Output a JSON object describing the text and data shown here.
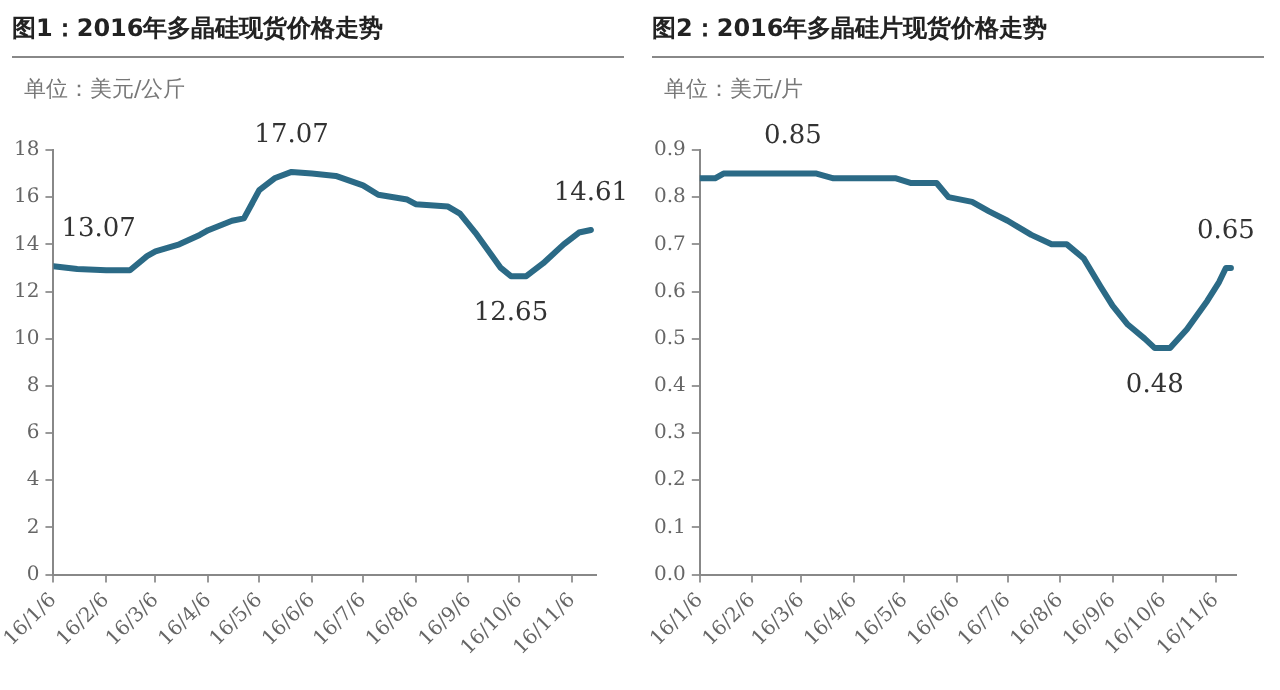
{
  "chart_data": [
    {
      "type": "line",
      "title": "图1：2016年多晶硅现货价格走势",
      "ylabel": "单位：美元/公斤",
      "x": [
        "2016-01-06",
        "2016-01-20",
        "2016-02-06",
        "2016-02-20",
        "2016-03-01",
        "2016-03-06",
        "2016-03-20",
        "2016-04-01",
        "2016-04-06",
        "2016-04-20",
        "2016-04-27",
        "2016-05-06",
        "2016-05-15",
        "2016-05-25",
        "2016-06-06",
        "2016-06-20",
        "2016-07-06",
        "2016-07-15",
        "2016-08-01",
        "2016-08-06",
        "2016-08-25",
        "2016-09-01",
        "2016-09-10",
        "2016-09-25",
        "2016-10-01",
        "2016-10-10",
        "2016-10-20",
        "2016-11-01",
        "2016-11-10",
        "2016-11-17"
      ],
      "series": [
        {
          "color": "#2b6a86",
          "values": [
            13.07,
            12.95,
            12.9,
            12.9,
            13.5,
            13.7,
            14.0,
            14.4,
            14.6,
            15.0,
            15.1,
            16.3,
            16.8,
            17.07,
            17.0,
            16.9,
            16.5,
            16.1,
            15.9,
            15.7,
            15.6,
            15.3,
            14.5,
            13.0,
            12.65,
            12.65,
            13.2,
            14.0,
            14.5,
            14.61
          ]
        }
      ],
      "xlim": [
        "2016-01-06",
        "2016-11-20"
      ],
      "xticks": [
        {
          "value": "2016-01-06",
          "label": "16/1/6"
        },
        {
          "value": "2016-02-06",
          "label": "16/2/6"
        },
        {
          "value": "2016-03-06",
          "label": "16/3/6"
        },
        {
          "value": "2016-04-06",
          "label": "16/4/6"
        },
        {
          "value": "2016-05-06",
          "label": "16/5/6"
        },
        {
          "value": "2016-06-06",
          "label": "16/6/6"
        },
        {
          "value": "2016-07-06",
          "label": "16/7/6"
        },
        {
          "value": "2016-08-06",
          "label": "16/8/6"
        },
        {
          "value": "2016-09-06",
          "label": "16/9/6"
        },
        {
          "value": "2016-10-06",
          "label": "16/10/6"
        },
        {
          "value": "2016-11-06",
          "label": "16/11/6"
        }
      ],
      "ylim": [
        0,
        18
      ],
      "yticks": [
        0,
        2,
        4,
        6,
        8,
        10,
        12,
        14,
        16,
        18
      ],
      "grid": false,
      "legend": false,
      "marker": "none",
      "line_style": "solid",
      "annotations": [
        {
          "text": "13.07",
          "x": "2016-01-06",
          "y": 13.07
        },
        {
          "text": "17.07",
          "x": "2016-05-25",
          "y": 17.07
        },
        {
          "text": "12.65",
          "x": "2016-10-01",
          "y": 12.65
        },
        {
          "text": "14.61",
          "x": "2016-11-17",
          "y": 14.61
        }
      ]
    },
    {
      "type": "line",
      "title": "图2：2016年多晶硅片现货价格走势",
      "ylabel": "单位：美元/片",
      "x": [
        "2016-01-06",
        "2016-01-15",
        "2016-01-20",
        "2016-03-15",
        "2016-03-25",
        "2016-05-01",
        "2016-05-10",
        "2016-05-25",
        "2016-06-01",
        "2016-06-15",
        "2016-06-25",
        "2016-07-06",
        "2016-07-20",
        "2016-08-01",
        "2016-08-10",
        "2016-08-20",
        "2016-08-30",
        "2016-09-06",
        "2016-09-15",
        "2016-09-25",
        "2016-10-01",
        "2016-10-10",
        "2016-10-20",
        "2016-11-01",
        "2016-11-08",
        "2016-11-12",
        "2016-11-15"
      ],
      "series": [
        {
          "color": "#2b6a86",
          "values": [
            0.84,
            0.84,
            0.85,
            0.85,
            0.84,
            0.84,
            0.83,
            0.83,
            0.8,
            0.79,
            0.77,
            0.75,
            0.72,
            0.7,
            0.7,
            0.67,
            0.61,
            0.57,
            0.53,
            0.5,
            0.48,
            0.48,
            0.52,
            0.58,
            0.62,
            0.65,
            0.65
          ]
        }
      ],
      "xlim": [
        "2016-01-06",
        "2016-11-18"
      ],
      "xticks": [
        {
          "value": "2016-01-06",
          "label": "16/1/6"
        },
        {
          "value": "2016-02-06",
          "label": "16/2/6"
        },
        {
          "value": "2016-03-06",
          "label": "16/3/6"
        },
        {
          "value": "2016-04-06",
          "label": "16/4/6"
        },
        {
          "value": "2016-05-06",
          "label": "16/5/6"
        },
        {
          "value": "2016-06-06",
          "label": "16/6/6"
        },
        {
          "value": "2016-07-06",
          "label": "16/7/6"
        },
        {
          "value": "2016-08-06",
          "label": "16/8/6"
        },
        {
          "value": "2016-09-06",
          "label": "16/9/6"
        },
        {
          "value": "2016-10-06",
          "label": "16/10/6"
        },
        {
          "value": "2016-11-06",
          "label": "16/11/6"
        }
      ],
      "ylim": [
        0,
        0.9
      ],
      "yticks": [
        {
          "value": 0,
          "label": "0.0"
        },
        0.1,
        0.2,
        0.3,
        0.4,
        0.5,
        0.6,
        0.7,
        0.8,
        0.9
      ],
      "grid": false,
      "legend": false,
      "marker": "none",
      "line_style": "solid",
      "annotations": [
        {
          "text": "0.85",
          "x": "2016-03-01",
          "y": 0.85
        },
        {
          "text": "0.48",
          "x": "2016-10-01",
          "y": 0.48
        },
        {
          "text": "0.65",
          "x": "2016-11-12",
          "y": 0.65
        }
      ]
    }
  ]
}
